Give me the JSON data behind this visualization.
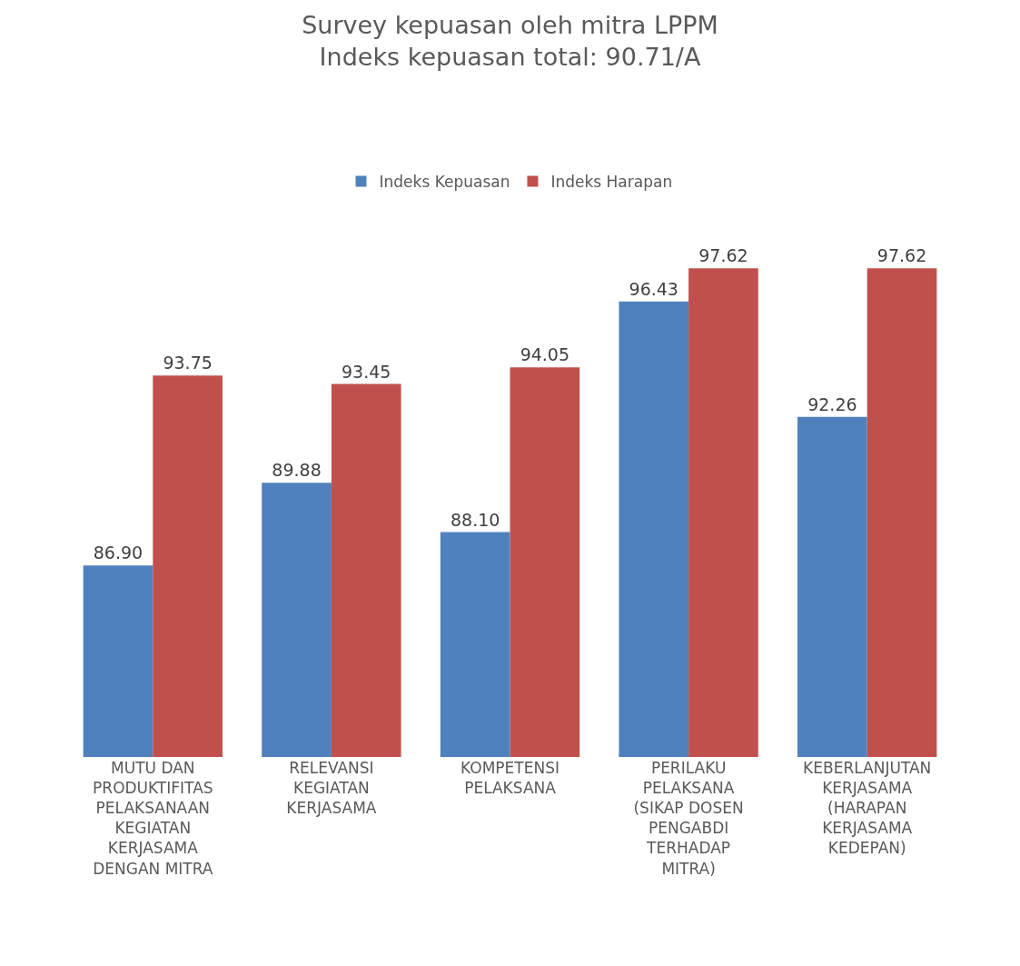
{
  "chart_data": {
    "type": "bar",
    "title": "Survey kepuasan oleh mitra LPPM",
    "subtitle": "Indeks kepuasan total: 90.71/A",
    "categories": [
      "MUTU DAN PRODUKTIFITAS PELAKSANAAN KEGIATAN KERJASAMA DENGAN MITRA",
      "RELEVANSI KEGIATAN KERJASAMA",
      "KOMPETENSI PELAKSANA",
      "PERILAKU PELAKSANA (SIKAP DOSEN PENGABDI TERHADAP MITRA)",
      "KEBERLANJUTAN KERJASAMA (HARAPAN KERJASAMA KEDEPAN)"
    ],
    "series": [
      {
        "name": "Indeks Kepuasan",
        "color": "#4f81bd",
        "values": [
          86.9,
          89.88,
          88.1,
          96.43,
          92.26
        ],
        "value_labels": [
          "86.90",
          "89.88",
          "88.10",
          "96.43",
          "92.26"
        ]
      },
      {
        "name": "Indeks Harapan",
        "color": "#c0504d",
        "values": [
          93.75,
          93.45,
          94.05,
          97.62,
          97.62
        ],
        "value_labels": [
          "93.75",
          "93.45",
          "94.05",
          "97.62",
          "97.62"
        ]
      }
    ],
    "tick_labels": "x",
    "grid": false,
    "legend": "top"
  }
}
